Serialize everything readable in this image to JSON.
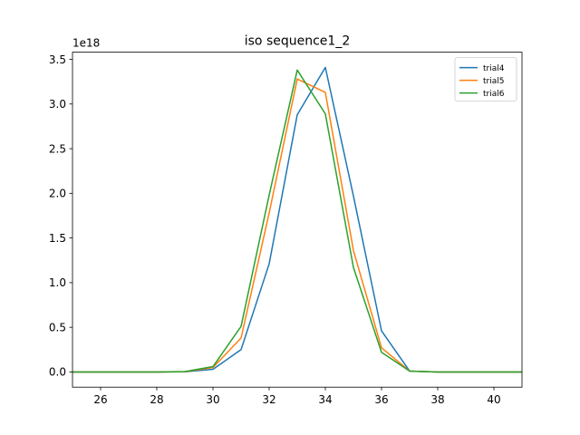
{
  "chart_data": {
    "type": "line",
    "title": "iso sequence1_2",
    "xlabel": "",
    "ylabel": "",
    "y_offset_text": "1e18",
    "y_scale_factor": 1e+18,
    "xlim": [
      25,
      41
    ],
    "ylim": [
      -0.17,
      3.58
    ],
    "x_ticks": [
      26,
      28,
      30,
      32,
      34,
      36,
      38,
      40
    ],
    "y_ticks": [
      0.0,
      0.5,
      1.0,
      1.5,
      2.0,
      2.5,
      3.0,
      3.5
    ],
    "y_tick_labels": [
      "0.0",
      "0.5",
      "1.0",
      "1.5",
      "2.0",
      "2.5",
      "3.0",
      "3.5"
    ],
    "grid": false,
    "legend_position": "top-right",
    "x": [
      25,
      26,
      27,
      28,
      29,
      30,
      31,
      32,
      33,
      34,
      35,
      36,
      37,
      38,
      39,
      40,
      41
    ],
    "series": [
      {
        "name": "trial4",
        "color": "#1f77b4",
        "values": [
          0,
          0,
          0,
          0,
          0.002,
          0.03,
          0.25,
          1.21,
          2.88,
          3.41,
          1.97,
          0.46,
          0.01,
          0,
          0,
          0,
          0
        ]
      },
      {
        "name": "trial5",
        "color": "#ff7f0e",
        "values": [
          0,
          0,
          0,
          0,
          0.003,
          0.05,
          0.38,
          1.78,
          3.28,
          3.13,
          1.36,
          0.27,
          0.01,
          0,
          0,
          0,
          0
        ]
      },
      {
        "name": "trial6",
        "color": "#2ca02c",
        "values": [
          0,
          0,
          0,
          0,
          0.004,
          0.06,
          0.51,
          1.98,
          3.38,
          2.89,
          1.17,
          0.22,
          0.01,
          0,
          0,
          0,
          0
        ]
      }
    ]
  }
}
